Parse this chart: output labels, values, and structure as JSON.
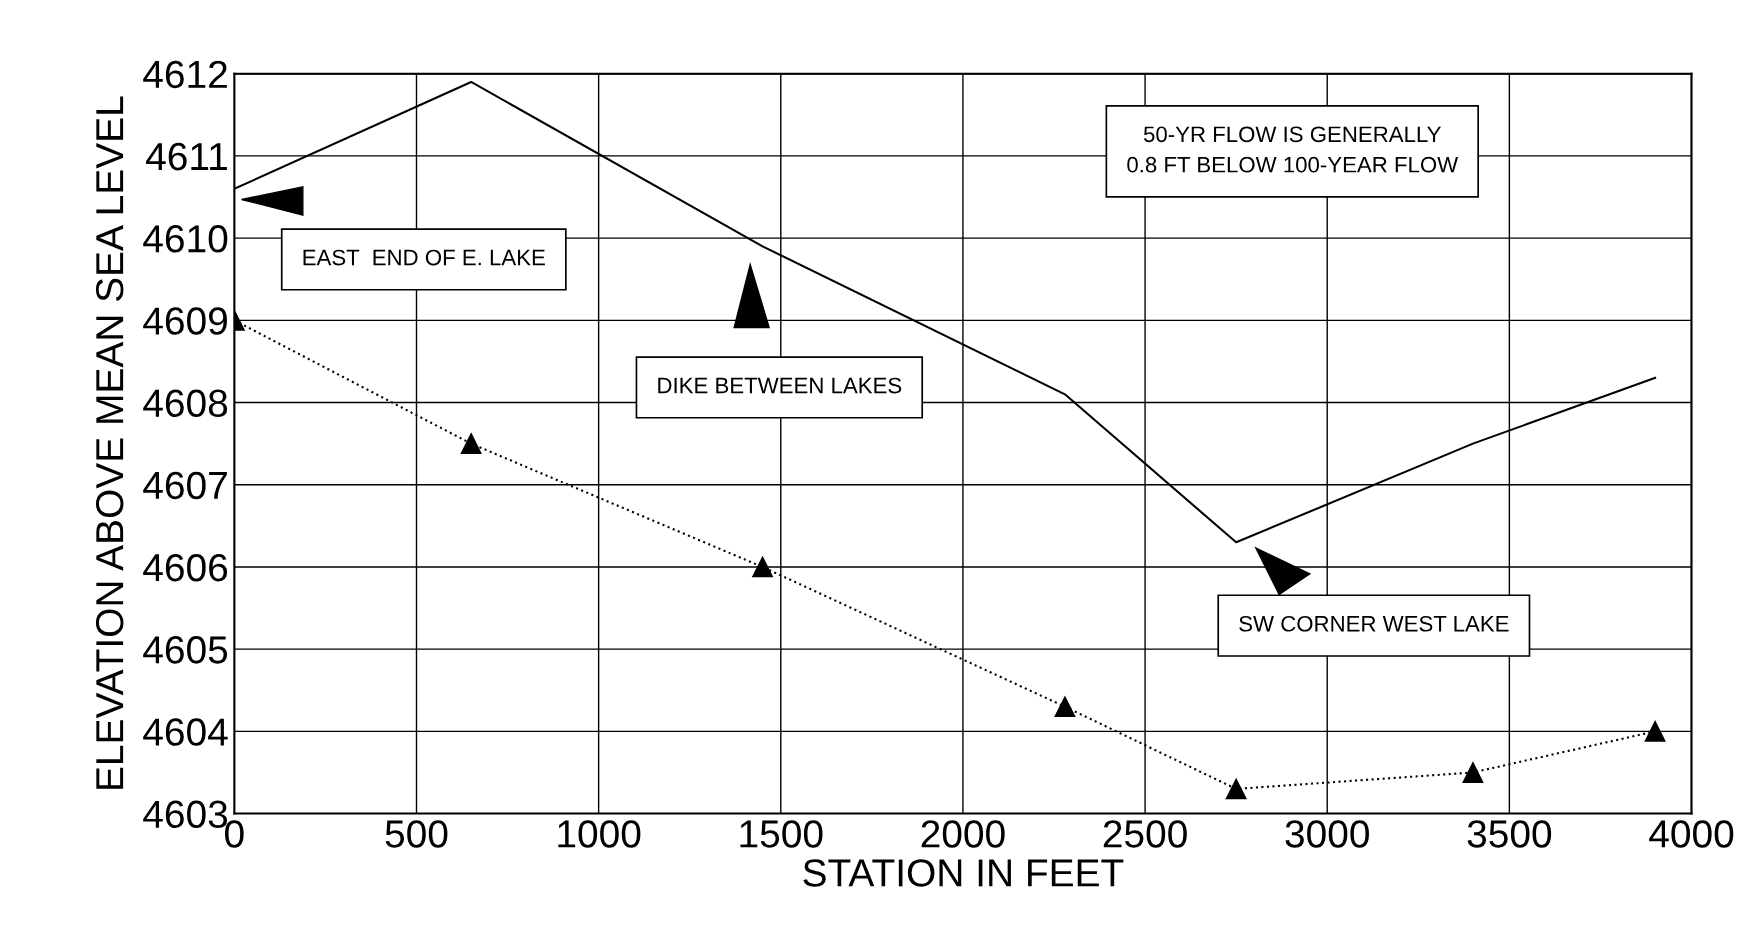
{
  "chart_data": {
    "type": "line",
    "xlabel": "STATION IN FEET",
    "ylabel": "ELEVATION ABOVE MEAN SEA LEVEL",
    "series": [
      {
        "color": "#000000",
        "line_style": "solid",
        "marker": "none",
        "x": [
          0,
          650,
          1450,
          2280,
          2750,
          3400,
          3900
        ],
        "values": [
          4610.6,
          4611.9,
          4609.9,
          4608.1,
          4606.3,
          4607.5,
          4608.3
        ]
      },
      {
        "color": "#000000",
        "line_style": "dotted",
        "marker": "triangle",
        "x": [
          0,
          650,
          1450,
          2280,
          2750,
          3400,
          3900
        ],
        "values": [
          4609.0,
          4607.5,
          4606.0,
          4604.3,
          4603.3,
          4603.5,
          4604.0
        ]
      }
    ],
    "annotations": [
      "EAST  END OF E. LAKE",
      "DIKE BETWEEN LAKES",
      "SW CORNER WEST LAKE",
      "50-YR FLOW IS GENERALLY\n0.8 FT BELOW 100-YEAR FLOW"
    ],
    "xlim": [
      0,
      4000
    ],
    "xticks": [
      0,
      500,
      1000,
      1500,
      2000,
      2500,
      3000,
      3500,
      4000
    ],
    "ylim": [
      4603,
      4612
    ],
    "yticks": [
      4603,
      4604,
      4605,
      4606,
      4607,
      4608,
      4609,
      4610,
      4611,
      4612
    ],
    "grid": true
  }
}
